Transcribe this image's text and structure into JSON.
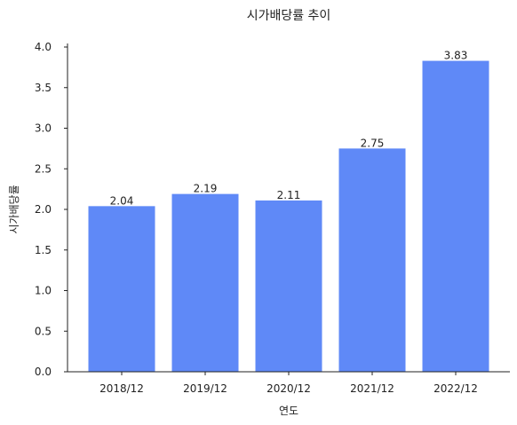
{
  "chart_data": {
    "type": "bar",
    "title": "시가배당률 추이",
    "xlabel": "연도",
    "ylabel": "시가배당률",
    "categories": [
      "2018/12",
      "2019/12",
      "2020/12",
      "2021/12",
      "2022/12"
    ],
    "values": [
      2.04,
      2.19,
      2.11,
      2.75,
      3.83
    ],
    "data_labels": [
      "2.04",
      "2.19",
      "2.11",
      "2.75",
      "3.83"
    ],
    "ylim": [
      0,
      4.0
    ],
    "yticks": [
      "0.0",
      "0.5",
      "1.0",
      "1.5",
      "2.0",
      "2.5",
      "3.0",
      "3.5",
      "4.0"
    ],
    "bar_color": "#5f89f7",
    "grid": false,
    "legend": false
  }
}
